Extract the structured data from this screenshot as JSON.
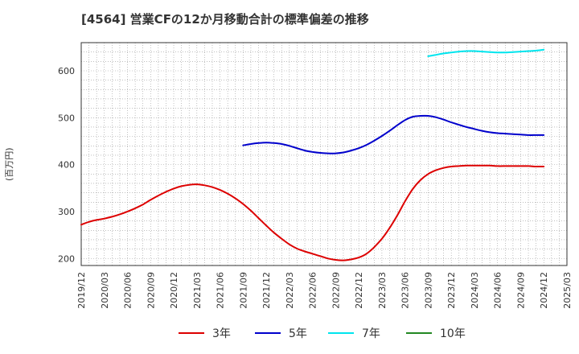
{
  "chart_data": {
    "type": "line",
    "title": "[4564]  営業CFの12か月移動合計の標準偏差の推移",
    "ylabel": "(百万円)",
    "xlabel": "",
    "ylim": [
      185,
      660
    ],
    "y_ticks": [
      200,
      300,
      400,
      500,
      600
    ],
    "x_ticks": [
      "2019/12",
      "2020/03",
      "2020/06",
      "2020/09",
      "2020/12",
      "2021/03",
      "2021/06",
      "2021/09",
      "2021/12",
      "2022/03",
      "2022/06",
      "2022/09",
      "2022/12",
      "2023/03",
      "2023/06",
      "2023/09",
      "2023/12",
      "2024/03",
      "2024/06",
      "2024/09",
      "2024/12",
      "2025/03"
    ],
    "grid": true,
    "legend_position": "bottom",
    "series": [
      {
        "name": "3年",
        "color": "#dd0000",
        "points": [
          [
            "2019/12",
            272
          ],
          [
            "2020/01",
            278
          ],
          [
            "2020/02",
            282
          ],
          [
            "2020/03",
            285
          ],
          [
            "2020/04",
            289
          ],
          [
            "2020/05",
            294
          ],
          [
            "2020/06",
            300
          ],
          [
            "2020/07",
            307
          ],
          [
            "2020/08",
            315
          ],
          [
            "2020/09",
            325
          ],
          [
            "2020/10",
            334
          ],
          [
            "2020/11",
            342
          ],
          [
            "2020/12",
            349
          ],
          [
            "2021/01",
            354
          ],
          [
            "2021/02",
            357
          ],
          [
            "2021/03",
            358
          ],
          [
            "2021/04",
            356
          ],
          [
            "2021/05",
            352
          ],
          [
            "2021/06",
            346
          ],
          [
            "2021/07",
            338
          ],
          [
            "2021/08",
            328
          ],
          [
            "2021/09",
            316
          ],
          [
            "2021/10",
            302
          ],
          [
            "2021/11",
            286
          ],
          [
            "2021/12",
            270
          ],
          [
            "2022/01",
            255
          ],
          [
            "2022/02",
            242
          ],
          [
            "2022/03",
            230
          ],
          [
            "2022/04",
            221
          ],
          [
            "2022/05",
            215
          ],
          [
            "2022/06",
            210
          ],
          [
            "2022/07",
            205
          ],
          [
            "2022/08",
            200
          ],
          [
            "2022/09",
            197
          ],
          [
            "2022/10",
            196
          ],
          [
            "2022/11",
            198
          ],
          [
            "2022/12",
            202
          ],
          [
            "2023/01",
            210
          ],
          [
            "2023/02",
            224
          ],
          [
            "2023/03",
            242
          ],
          [
            "2023/04",
            265
          ],
          [
            "2023/05",
            292
          ],
          [
            "2023/06",
            322
          ],
          [
            "2023/07",
            348
          ],
          [
            "2023/08",
            367
          ],
          [
            "2023/09",
            380
          ],
          [
            "2023/10",
            388
          ],
          [
            "2023/11",
            393
          ],
          [
            "2023/12",
            396
          ],
          [
            "2024/01",
            397
          ],
          [
            "2024/02",
            398
          ],
          [
            "2024/03",
            398
          ],
          [
            "2024/04",
            398
          ],
          [
            "2024/05",
            398
          ],
          [
            "2024/06",
            397
          ],
          [
            "2024/07",
            397
          ],
          [
            "2024/08",
            397
          ],
          [
            "2024/09",
            397
          ],
          [
            "2024/10",
            397
          ],
          [
            "2024/11",
            396
          ],
          [
            "2024/12",
            396
          ]
        ]
      },
      {
        "name": "5年",
        "color": "#0000cc",
        "points": [
          [
            "2021/09",
            441
          ],
          [
            "2021/10",
            444
          ],
          [
            "2021/11",
            446
          ],
          [
            "2021/12",
            447
          ],
          [
            "2022/01",
            446
          ],
          [
            "2022/02",
            444
          ],
          [
            "2022/03",
            440
          ],
          [
            "2022/04",
            435
          ],
          [
            "2022/05",
            430
          ],
          [
            "2022/06",
            427
          ],
          [
            "2022/07",
            425
          ],
          [
            "2022/08",
            424
          ],
          [
            "2022/09",
            424
          ],
          [
            "2022/10",
            426
          ],
          [
            "2022/11",
            430
          ],
          [
            "2022/12",
            435
          ],
          [
            "2023/01",
            442
          ],
          [
            "2023/02",
            451
          ],
          [
            "2023/03",
            461
          ],
          [
            "2023/04",
            472
          ],
          [
            "2023/05",
            484
          ],
          [
            "2023/06",
            495
          ],
          [
            "2023/07",
            502
          ],
          [
            "2023/08",
            504
          ],
          [
            "2023/09",
            504
          ],
          [
            "2023/10",
            501
          ],
          [
            "2023/11",
            496
          ],
          [
            "2023/12",
            490
          ],
          [
            "2024/01",
            485
          ],
          [
            "2024/02",
            480
          ],
          [
            "2024/03",
            476
          ],
          [
            "2024/04",
            472
          ],
          [
            "2024/05",
            469
          ],
          [
            "2024/06",
            467
          ],
          [
            "2024/07",
            466
          ],
          [
            "2024/08",
            465
          ],
          [
            "2024/09",
            464
          ],
          [
            "2024/10",
            463
          ],
          [
            "2024/11",
            463
          ],
          [
            "2024/12",
            463
          ]
        ]
      },
      {
        "name": "7年",
        "color": "#00e5ee",
        "points": [
          [
            "2023/09",
            631
          ],
          [
            "2023/10",
            634
          ],
          [
            "2023/11",
            637
          ],
          [
            "2023/12",
            639
          ],
          [
            "2024/01",
            641
          ],
          [
            "2024/02",
            642
          ],
          [
            "2024/03",
            642
          ],
          [
            "2024/04",
            641
          ],
          [
            "2024/05",
            640
          ],
          [
            "2024/06",
            639
          ],
          [
            "2024/07",
            639
          ],
          [
            "2024/08",
            640
          ],
          [
            "2024/09",
            641
          ],
          [
            "2024/10",
            642
          ],
          [
            "2024/11",
            643
          ],
          [
            "2024/12",
            645
          ]
        ]
      },
      {
        "name": "10年",
        "color": "#228822",
        "points": []
      }
    ]
  }
}
